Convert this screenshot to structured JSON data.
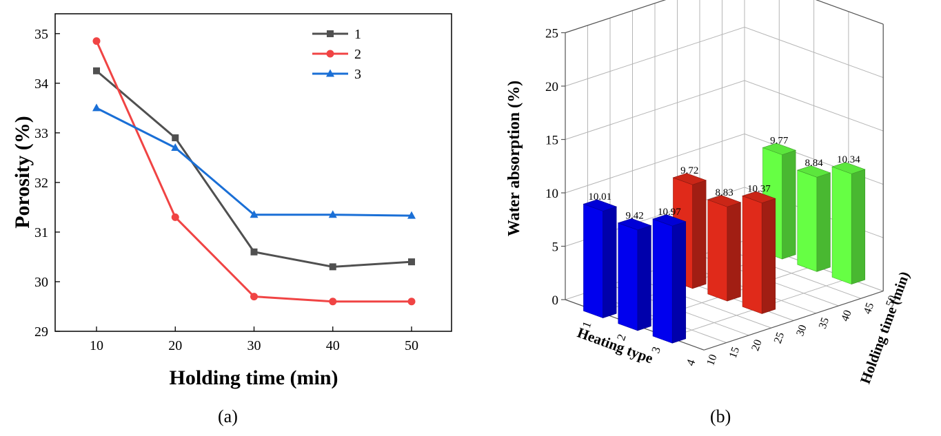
{
  "chart_data": [
    {
      "type": "line",
      "panel": "(a)",
      "xlabel": "Holding time (min)",
      "ylabel": "Porosity (%)",
      "x": [
        10,
        20,
        30,
        40,
        50
      ],
      "xticks": [
        "10",
        "20",
        "30",
        "40",
        "50"
      ],
      "ylim": [
        29,
        35.4
      ],
      "yticks": [
        "29",
        "30",
        "31",
        "32",
        "33",
        "34",
        "35"
      ],
      "legend_position": "top-right",
      "series": [
        {
          "name": "1",
          "marker": "square",
          "color": "#505050",
          "values": [
            34.25,
            32.9,
            30.6,
            30.3,
            30.4
          ]
        },
        {
          "name": "2",
          "marker": "circle",
          "color": "#f04444",
          "values": [
            34.85,
            31.3,
            29.7,
            29.6,
            29.6
          ]
        },
        {
          "name": "3",
          "marker": "triangle",
          "color": "#1a6fd6",
          "values": [
            33.5,
            32.7,
            31.35,
            31.35,
            31.33
          ]
        }
      ]
    },
    {
      "type": "bar3d",
      "panel": "(b)",
      "zlabel": "Water absorption (%)",
      "xlabel": "Heating type",
      "ylabel": "Holding time (min)",
      "zlim": [
        0,
        25
      ],
      "zticks": [
        "0",
        "5",
        "10",
        "15",
        "20",
        "25"
      ],
      "xticks": [
        "1",
        "2",
        "3",
        "4"
      ],
      "yticks": [
        "10",
        "15",
        "20",
        "25",
        "30",
        "35",
        "40",
        "45",
        "50"
      ],
      "bars": [
        {
          "heating_type": 1,
          "holding_time": 10,
          "value": 10.01,
          "label": "10.01",
          "color": "#0000ee"
        },
        {
          "heating_type": 2,
          "holding_time": 10,
          "value": 9.42,
          "label": "9.42",
          "color": "#0000ee"
        },
        {
          "heating_type": 3,
          "holding_time": 10,
          "value": 10.97,
          "label": "10.97",
          "color": "#0000ee"
        },
        {
          "heating_type": 1,
          "holding_time": 30,
          "value": 9.72,
          "label": "9.72",
          "color": "#e02a1a"
        },
        {
          "heating_type": 2,
          "holding_time": 30,
          "value": 8.83,
          "label": "8.83",
          "color": "#e02a1a"
        },
        {
          "heating_type": 3,
          "holding_time": 30,
          "value": 10.37,
          "label": "10.37",
          "color": "#e02a1a"
        },
        {
          "heating_type": 1,
          "holding_time": 50,
          "value": 9.77,
          "label": "9.77",
          "color": "#66ff44"
        },
        {
          "heating_type": 2,
          "holding_time": 50,
          "value": 8.84,
          "label": "8.84",
          "color": "#66ff44"
        },
        {
          "heating_type": 3,
          "holding_time": 50,
          "value": 10.34,
          "label": "10.34",
          "color": "#66ff44"
        }
      ]
    }
  ]
}
